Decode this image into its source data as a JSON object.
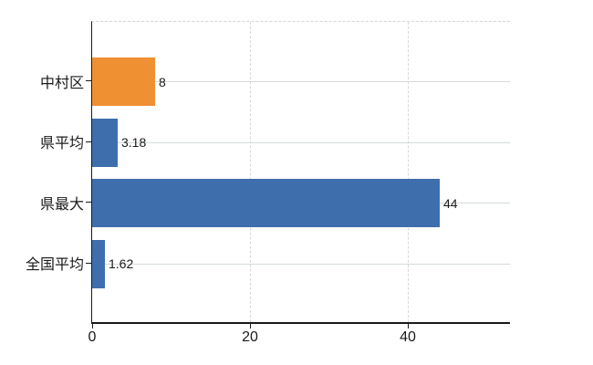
{
  "chart_data": {
    "type": "bar",
    "orientation": "horizontal",
    "title": "",
    "xlabel": "",
    "ylabel": "",
    "categories": [
      "中村区",
      "県平均",
      "県最大",
      "全国平均"
    ],
    "values": [
      8,
      3.18,
      44,
      1.62
    ],
    "value_labels": [
      "8",
      "3.18",
      "44",
      "1.62"
    ],
    "bar_colors": [
      "#ef9033",
      "#3f6ead",
      "#3f6ead",
      "#3f6ead"
    ],
    "x_ticks": [
      0,
      20,
      40
    ],
    "x_tick_labels": [
      "0",
      "20",
      "40"
    ],
    "xlim": [
      0,
      52.9
    ],
    "grid": true,
    "legend": false,
    "colors": {
      "orange_bar": "#ef9033",
      "blue_bar": "#3f6ead",
      "horizontal_grid": "#d3dcd3",
      "vertical_grid_dashed": "#d8d8d8",
      "axis_line": "#1a1a1a",
      "text": "#1a1a1a",
      "background": "#ffffff"
    }
  }
}
